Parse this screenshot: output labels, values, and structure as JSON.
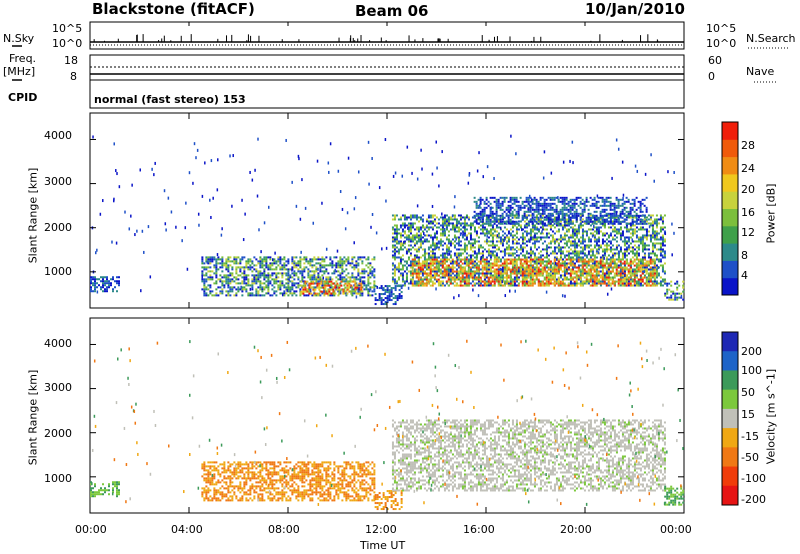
{
  "header": {
    "station": "Blackstone (fitACF)",
    "beam": "Beam 06",
    "date": "10/Jan/2010"
  },
  "side_labels": {
    "nsky": "N.Sky",
    "nsearch": "N.Search",
    "freq": "Freq.",
    "mhz": "[MHz]",
    "nave": "Nave",
    "cpid": "CPID",
    "cpid_value": "normal (fast stereo) 153"
  },
  "noise_axis": {
    "left_top": "10^5",
    "left_bottom": "10^0",
    "right_top": "10^5",
    "right_bottom": "10^0"
  },
  "freq_axis": {
    "left_top": "18",
    "left_bottom": "8",
    "right_top": "60",
    "right_bottom": "0"
  },
  "chart_data": [
    {
      "type": "heatmap",
      "title": "",
      "xlabel": "Time UT",
      "ylabel": "Slant Range [km]",
      "x_ticks": [
        "00:00",
        "04:00",
        "08:00",
        "12:00",
        "16:00",
        "20:00",
        "00:00"
      ],
      "y_ticks": [
        "1000",
        "2000",
        "3000",
        "4000"
      ],
      "xlim_hours": [
        0,
        24
      ],
      "ylim_km": [
        180,
        4600
      ],
      "colorbar": {
        "label": "Power [dB]",
        "ticks": [
          "4",
          "8",
          "12",
          "16",
          "20",
          "24",
          "28"
        ],
        "colors": [
          "#0a14c8",
          "#1e50c8",
          "#2d8a8a",
          "#3fa04a",
          "#7cbf3c",
          "#c8d23c",
          "#f0c81e",
          "#f08c14",
          "#f05a0a",
          "#f01e0a"
        ]
      },
      "regions": [
        {
          "t_start": 0.0,
          "t_end": 1.2,
          "r_low": 550,
          "r_high": 900,
          "level": "low"
        },
        {
          "t_start": 4.5,
          "t_end": 11.5,
          "r_low": 450,
          "r_high": 1350,
          "level": "medium"
        },
        {
          "t_start": 8.5,
          "t_end": 11.0,
          "r_low": 500,
          "r_high": 800,
          "level": "high"
        },
        {
          "t_start": 11.5,
          "t_end": 12.6,
          "r_low": 250,
          "r_high": 700,
          "level": "low"
        },
        {
          "t_start": 12.2,
          "t_end": 23.2,
          "r_low": 700,
          "r_high": 2300,
          "level": "medium"
        },
        {
          "t_start": 13.0,
          "t_end": 22.8,
          "r_low": 700,
          "r_high": 1300,
          "level": "high"
        },
        {
          "t_start": 15.5,
          "t_end": 22.5,
          "r_low": 2100,
          "r_high": 2700,
          "level": "low"
        },
        {
          "t_start": 23.2,
          "t_end": 24.0,
          "r_low": 350,
          "r_high": 800,
          "level": "medium"
        }
      ]
    },
    {
      "type": "heatmap",
      "title": "",
      "xlabel": "Time UT",
      "ylabel": "Slant Range [km]",
      "x_ticks": [
        "00:00",
        "04:00",
        "08:00",
        "12:00",
        "16:00",
        "20:00",
        "00:00"
      ],
      "y_ticks": [
        "1000",
        "2000",
        "3000",
        "4000"
      ],
      "xlim_hours": [
        0,
        24
      ],
      "ylim_km": [
        180,
        4600
      ],
      "colorbar": {
        "label": "Velocity [m s^-1]",
        "ticks": [
          "200",
          "100",
          "50",
          "15",
          "-15",
          "-50",
          "-100",
          "-200"
        ],
        "colors": [
          "#1e28b4",
          "#1e64c8",
          "#3c9a5a",
          "#7cc83c",
          "#c0c0b8",
          "#f0a814",
          "#f07814",
          "#f03c0a",
          "#e61414"
        ]
      },
      "regions": [
        {
          "t_start": 0.0,
          "t_end": 1.2,
          "r_low": 550,
          "r_high": 900,
          "level": "toward"
        },
        {
          "t_start": 4.5,
          "t_end": 11.5,
          "r_low": 450,
          "r_high": 1350,
          "level": "away"
        },
        {
          "t_start": 11.5,
          "t_end": 12.6,
          "r_low": 250,
          "r_high": 700,
          "level": "away"
        },
        {
          "t_start": 12.2,
          "t_end": 23.2,
          "r_low": 700,
          "r_high": 2300,
          "level": "ground"
        },
        {
          "t_start": 23.2,
          "t_end": 24.0,
          "r_low": 350,
          "r_high": 800,
          "level": "toward"
        }
      ]
    }
  ]
}
